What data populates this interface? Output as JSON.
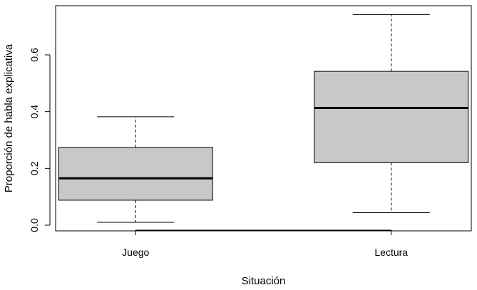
{
  "chart_data": {
    "type": "boxplot",
    "title": "",
    "xlabel": "Situación",
    "ylabel": "Proporción de habla explicativa",
    "categories": [
      "Juego",
      "Lectura"
    ],
    "boxes": [
      {
        "category": "Juego",
        "whisker_low": 0.01,
        "q1": 0.088,
        "median": 0.165,
        "q3": 0.274,
        "whisker_high": 0.382
      },
      {
        "category": "Lectura",
        "whisker_low": 0.044,
        "q1": 0.22,
        "median": 0.413,
        "q3": 0.542,
        "whisker_high": 0.742
      }
    ],
    "y_ticks": [
      "0.0",
      "0.2",
      "0.4",
      "0.6"
    ],
    "ylim": [
      -0.02,
      0.77
    ],
    "grid": false,
    "colors": {
      "box_fill": "#c8c8c8",
      "line": "#000000"
    }
  }
}
